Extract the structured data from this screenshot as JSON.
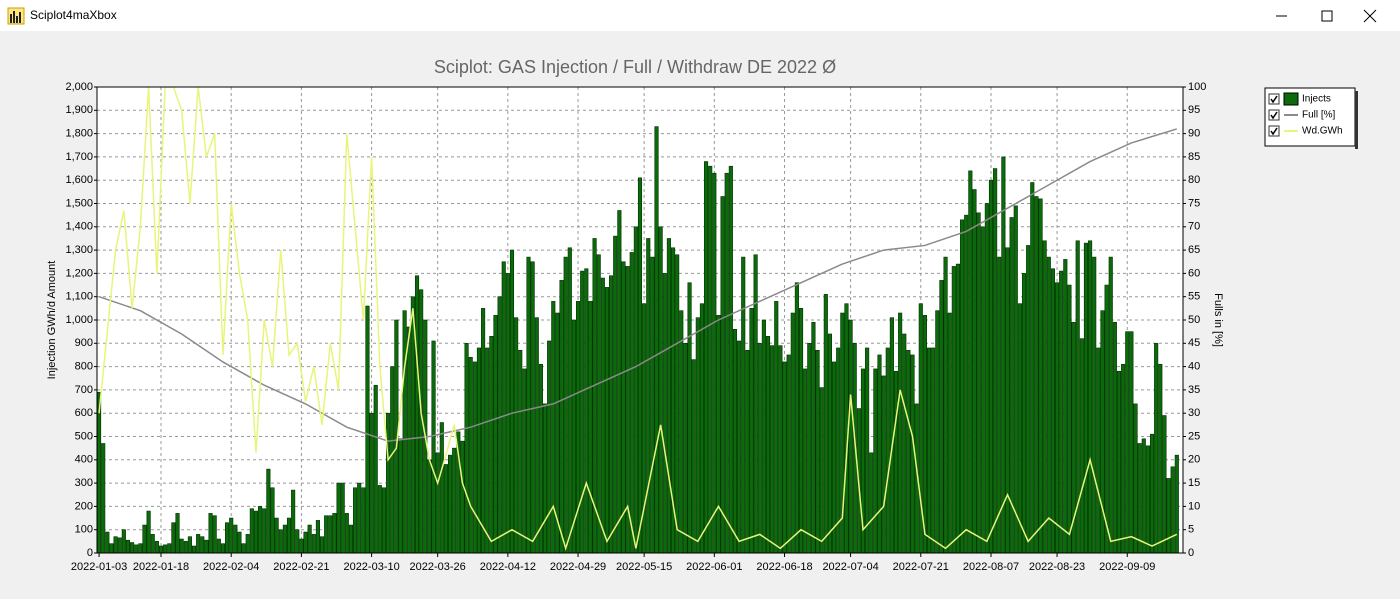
{
  "window_title": "Sciplot4maXbox",
  "chart_data": {
    "type": "bar",
    "title": "Sciplot: GAS Injection / Full / Withdraw DE 2022 Ø",
    "y_label": "Injection GWh/d Amount",
    "y2_label": "Fulls in [%]",
    "xlim": [
      -0.5,
      262.5
    ],
    "xticks": [
      {
        "value": 0,
        "label": "2022-01-03"
      },
      {
        "value": 15,
        "label": "2022-01-18"
      },
      {
        "value": 32,
        "label": "2022-02-04"
      },
      {
        "value": 49,
        "label": "2022-02-21"
      },
      {
        "value": 66,
        "label": "2022-03-10"
      },
      {
        "value": 82,
        "label": "2022-03-26"
      },
      {
        "value": 99,
        "label": "2022-04-12"
      },
      {
        "value": 116,
        "label": "2022-04-29"
      },
      {
        "value": 132,
        "label": "2022-05-15"
      },
      {
        "value": 149,
        "label": "2022-06-01"
      },
      {
        "value": 166,
        "label": "2022-06-18"
      },
      {
        "value": 182,
        "label": "2022-07-04"
      },
      {
        "value": 199,
        "label": "2022-07-21"
      },
      {
        "value": 216,
        "label": "2022-08-07"
      },
      {
        "value": 232,
        "label": "2022-08-23"
      },
      {
        "value": 249,
        "label": "2022-09-09"
      }
    ],
    "ylim": [
      0,
      2000
    ],
    "yticks": [
      0,
      100,
      200,
      300,
      400,
      500,
      600,
      700,
      800,
      900,
      {
        "value": 1000,
        "label": "1,000"
      },
      {
        "value": 1100,
        "label": "1,100"
      },
      {
        "value": 1200,
        "label": "1,200"
      },
      {
        "value": 1300,
        "label": "1,300"
      },
      {
        "value": 1400,
        "label": "1,400"
      },
      {
        "value": 1500,
        "label": "1,500"
      },
      {
        "value": 1600,
        "label": "1,600"
      },
      {
        "value": 1700,
        "label": "1,700"
      },
      {
        "value": 1800,
        "label": "1,800"
      },
      {
        "value": 1900,
        "label": "1,900"
      },
      {
        "value": 2000,
        "label": "2,000"
      }
    ],
    "y2lim": [
      0,
      100
    ],
    "y2ticks": [
      0,
      5,
      10,
      15,
      20,
      25,
      30,
      35,
      40,
      45,
      50,
      55,
      60,
      65,
      70,
      75,
      80,
      85,
      90,
      95,
      100
    ],
    "grid": true,
    "legend": "right",
    "series": [
      {
        "name": "Injects",
        "type": "bar",
        "color": "#0b6b0b",
        "values": [
          690,
          470,
          90,
          40,
          70,
          65,
          100,
          55,
          45,
          35,
          40,
          120,
          180,
          80,
          50,
          30,
          35,
          40,
          130,
          170,
          60,
          50,
          70,
          30,
          80,
          70,
          55,
          170,
          160,
          60,
          40,
          130,
          150,
          120,
          90,
          40,
          80,
          190,
          180,
          200,
          190,
          360,
          280,
          150,
          100,
          120,
          150,
          270,
          100,
          60,
          90,
          120,
          80,
          140,
          70,
          160,
          160,
          170,
          300,
          300,
          170,
          120,
          280,
          300,
          280,
          1060,
          600,
          720,
          290,
          280,
          600,
          800,
          1000,
          490,
          1040,
          970,
          1100,
          1190,
          1130,
          1000,
          400,
          910,
          430,
          560,
          380,
          420,
          450,
          520,
          480,
          900,
          840,
          820,
          880,
          1050,
          880,
          930,
          1020,
          1100,
          1250,
          1200,
          1300,
          1010,
          870,
          790,
          1270,
          1250,
          1010,
          810,
          640,
          910,
          1080,
          1030,
          1170,
          1270,
          1310,
          1000,
          1080,
          1210,
          1220,
          1080,
          1350,
          1280,
          1180,
          1140,
          1190,
          1360,
          1470,
          1250,
          1230,
          1290,
          1400,
          1610,
          1070,
          1350,
          1270,
          1830,
          1400,
          1200,
          1350,
          1310,
          1280,
          1040,
          900,
          1160,
          830,
          1010,
          1070,
          1680,
          1660,
          1630,
          1020,
          1530,
          1630,
          1660,
          960,
          910,
          1270,
          870,
          1050,
          1280,
          900,
          1000,
          930,
          890,
          1080,
          890,
          820,
          850,
          1030,
          1160,
          1050,
          790,
          900,
          990,
          870,
          710,
          1110,
          940,
          820,
          880,
          1030,
          1070,
          1000,
          900,
          620,
          790,
          880,
          430,
          790,
          850,
          760,
          880,
          1010,
          780,
          1030,
          940,
          870,
          850,
          640,
          1070,
          1020,
          880,
          880,
          1040,
          1170,
          1270,
          1030,
          1230,
          1240,
          1430,
          1450,
          1640,
          1560,
          1460,
          1400,
          1500,
          1600,
          1650,
          1270,
          1700,
          1310,
          1440,
          1490,
          1070,
          1200,
          1320,
          1590,
          1530,
          1520,
          1340,
          1270,
          1220,
          1160,
          1210,
          1260,
          1150,
          990,
          1340,
          920,
          1330,
          1340,
          1270,
          880,
          1040,
          1150,
          1270,
          990,
          780,
          810,
          950,
          950,
          640,
          470,
          490,
          460,
          510,
          900,
          810,
          590,
          320,
          370,
          420
        ]
      },
      {
        "name": "Full [%]",
        "type": "line",
        "axis": "y2",
        "color": "#8a8a8a",
        "x": [
          0,
          10,
          20,
          30,
          40,
          50,
          60,
          70,
          80,
          90,
          100,
          110,
          120,
          130,
          140,
          150,
          160,
          170,
          180,
          190,
          200,
          210,
          220,
          230,
          240,
          250,
          261
        ],
        "values": [
          55,
          52,
          47,
          41,
          36,
          32,
          27,
          24,
          25,
          27,
          30,
          32,
          36,
          40,
          45,
          50,
          54,
          58,
          62,
          65,
          66,
          69,
          74,
          79,
          84,
          88,
          91
        ]
      },
      {
        "name": "Wd.GWh",
        "type": "line",
        "color": "#e8f57a",
        "x": [
          0,
          2,
          4,
          6,
          8,
          10,
          12,
          14,
          16,
          18,
          20,
          22,
          24,
          26,
          28,
          30,
          32,
          34,
          36,
          38,
          40,
          42,
          44,
          46,
          48,
          50,
          52,
          54,
          56,
          58,
          60,
          62,
          64,
          66,
          68,
          70,
          72,
          74,
          76,
          78,
          80,
          82,
          84,
          86,
          88,
          90,
          95,
          100,
          105,
          110,
          113,
          118,
          123,
          128,
          130,
          136,
          140,
          145,
          150,
          155,
          160,
          165,
          170,
          175,
          180,
          182,
          185,
          190,
          194,
          197,
          200,
          205,
          210,
          215,
          220,
          225,
          230,
          235,
          240,
          245,
          250,
          255,
          261
        ],
        "values": [
          600,
          950,
          1300,
          1470,
          1050,
          1400,
          2000,
          1200,
          2000,
          2000,
          1900,
          1500,
          2000,
          1700,
          1800,
          850,
          1500,
          1200,
          1000,
          430,
          1000,
          800,
          1300,
          850,
          900,
          650,
          800,
          550,
          900,
          700,
          1800,
          1400,
          1000,
          1700,
          800,
          400,
          450,
          800,
          1050,
          600,
          400,
          300,
          420,
          550,
          300,
          200,
          50,
          100,
          50,
          200,
          20,
          300,
          50,
          200,
          20,
          550,
          100,
          50,
          200,
          50,
          80,
          20,
          100,
          50,
          150,
          680,
          100,
          200,
          700,
          500,
          80,
          20,
          100,
          50,
          250,
          50,
          150,
          80,
          400,
          50,
          70,
          30,
          80
        ]
      }
    ]
  }
}
